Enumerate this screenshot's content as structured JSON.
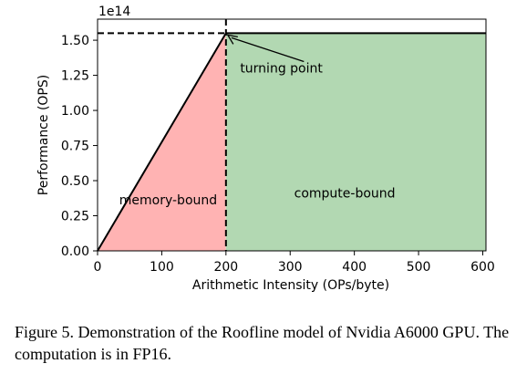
{
  "chart_data": {
    "type": "area",
    "xlabel": "Arithmetic Intensity (OPs/byte)",
    "ylabel": "Performance (OPS)",
    "offset_label": "1e14",
    "xlim": [
      0,
      605
    ],
    "ylim": [
      0,
      1.65
    ],
    "x_ticks": [
      0,
      100,
      200,
      300,
      400,
      500,
      600
    ],
    "x_tick_labels": [
      "0",
      "100",
      "200",
      "300",
      "400",
      "500",
      "600"
    ],
    "y_ticks": [
      0,
      0.25,
      0.5,
      0.75,
      1.0,
      1.25,
      1.5
    ],
    "y_tick_labels": [
      "0.00",
      "0.25",
      "0.50",
      "0.75",
      "1.00",
      "1.25",
      "1.50"
    ],
    "grid": false,
    "roofline": {
      "x": [
        0,
        200,
        605
      ],
      "y": [
        0,
        1.55,
        1.55
      ]
    },
    "regions": [
      {
        "name": "memory-bound",
        "x_range": [
          0,
          200
        ],
        "color": "#ffb3b3"
      },
      {
        "name": "compute-bound",
        "x_range": [
          200,
          605
        ],
        "color": "#b2d8b2"
      }
    ],
    "turning_point": {
      "x": 200,
      "y": 1.55
    },
    "annotations": [
      {
        "text": "turning point",
        "x": 222,
        "y": 1.27
      },
      {
        "text": "memory-bound",
        "x": 110,
        "y": 0.33
      },
      {
        "text": "compute-bound",
        "x": 385,
        "y": 0.38
      }
    ],
    "region_labels": [
      "memory-bound",
      "compute-bound"
    ]
  },
  "caption": "Figure 5. Demonstration of the Roofline model of Nvidia A6000 GPU. The computation is in FP16."
}
